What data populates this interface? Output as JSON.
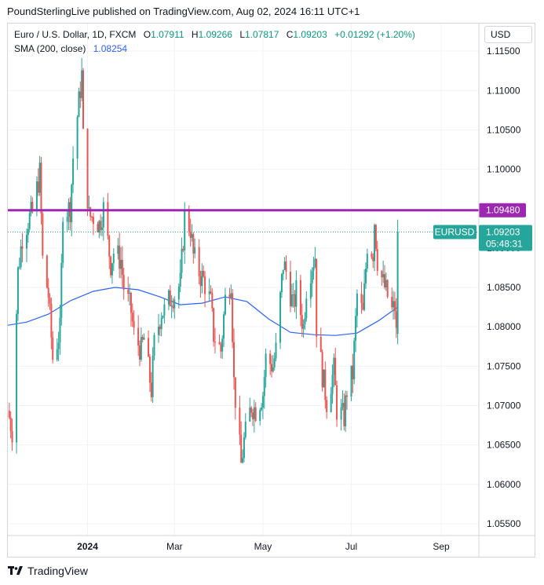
{
  "headline": "PoundSterlingLive published on TradingView.com, Aug 02, 2024 16:11 UTC+1",
  "legend": {
    "symbol": "Euro / U.S. Dollar, 1D, FXCM",
    "open_key": "O",
    "open": "1.07911",
    "high_key": "H",
    "high": "1.09266",
    "low_key": "L",
    "low": "1.07817",
    "close_key": "C",
    "close": "1.09203",
    "change": "+0.01292 (+1.20%)",
    "sma_label": "SMA (200, close)",
    "sma_value": "1.08254"
  },
  "currency_button": "USD",
  "footer": {
    "brand": "TradingView"
  },
  "colors": {
    "up": "#26a69a",
    "down": "#ef5350",
    "sma": "#2962ff",
    "resistance": "#9c27b0",
    "price_tag": "#26a69a",
    "grid": "#f0f3fa",
    "border": "#d1d4dc"
  },
  "chart_data": {
    "type": "candlestick",
    "symbol_tag": "EURUSD",
    "last_price": "1.09203",
    "countdown": "05:48:31",
    "resistance_level": 1.0948,
    "resistance_label": "1.09480",
    "ylim": [
      1.0535,
      1.1185
    ],
    "y_ticks": [
      {
        "value": 1.115,
        "label": "1.11500"
      },
      {
        "value": 1.11,
        "label": "1.11000"
      },
      {
        "value": 1.105,
        "label": "1.10500"
      },
      {
        "value": 1.1,
        "label": "1.10000"
      },
      {
        "value": 1.09,
        "label": "1.09000"
      },
      {
        "value": 1.085,
        "label": "1.08500"
      },
      {
        "value": 1.08,
        "label": "1.08000"
      },
      {
        "value": 1.075,
        "label": "1.07500"
      },
      {
        "value": 1.07,
        "label": "1.07000"
      },
      {
        "value": 1.065,
        "label": "1.06500"
      },
      {
        "value": 1.06,
        "label": "1.06000"
      },
      {
        "value": 1.055,
        "label": "1.05500"
      }
    ],
    "x_range": [
      "2023-11-07",
      "2024-09-27"
    ],
    "x_ticks": [
      {
        "date": "2024-01-01",
        "label": "2024"
      },
      {
        "date": "2024-03-01",
        "label": "Mar"
      },
      {
        "date": "2024-05-01",
        "label": "May"
      },
      {
        "date": "2024-07-01",
        "label": "Jul"
      },
      {
        "date": "2024-09-01",
        "label": "Sep"
      }
    ],
    "price_path": [
      [
        "2023-11-08",
        1.0685
      ],
      [
        "2023-11-10",
        1.0668
      ],
      [
        "2023-11-14",
        1.087
      ],
      [
        "2023-11-17",
        1.0915
      ],
      [
        "2023-11-21",
        1.0935
      ],
      [
        "2023-11-24",
        1.0945
      ],
      [
        "2023-11-29",
        1.0995
      ],
      [
        "2023-12-01",
        1.0885
      ],
      [
        "2023-12-05",
        1.084
      ],
      [
        "2023-12-08",
        1.076
      ],
      [
        "2023-12-13",
        1.0795
      ],
      [
        "2023-12-15",
        1.095
      ],
      [
        "2023-12-20",
        1.095
      ],
      [
        "2023-12-22",
        1.1015
      ],
      [
        "2023-12-28",
        1.112
      ],
      [
        "2023-12-29",
        1.104
      ],
      [
        "2024-01-02",
        1.094
      ],
      [
        "2024-01-05",
        1.094
      ],
      [
        "2024-01-09",
        1.093
      ],
      [
        "2024-01-12",
        1.095
      ],
      [
        "2024-01-17",
        1.088
      ],
      [
        "2024-01-19",
        1.0895
      ],
      [
        "2024-01-24",
        1.0885
      ],
      [
        "2024-01-26",
        1.085
      ],
      [
        "2024-01-31",
        1.082
      ],
      [
        "2024-02-02",
        1.079
      ],
      [
        "2024-02-07",
        1.077
      ],
      [
        "2024-02-09",
        1.0785
      ],
      [
        "2024-02-14",
        1.072
      ],
      [
        "2024-02-16",
        1.0778
      ],
      [
        "2024-02-21",
        1.082
      ],
      [
        "2024-02-23",
        1.082
      ],
      [
        "2024-02-28",
        1.084
      ],
      [
        "2024-03-01",
        1.084
      ],
      [
        "2024-03-05",
        1.0855
      ],
      [
        "2024-03-08",
        1.094
      ],
      [
        "2024-03-12",
        1.0925
      ],
      [
        "2024-03-14",
        1.089
      ],
      [
        "2024-03-19",
        1.0865
      ],
      [
        "2024-03-21",
        1.086
      ],
      [
        "2024-03-26",
        1.083
      ],
      [
        "2024-03-28",
        1.079
      ],
      [
        "2024-04-02",
        1.077
      ],
      [
        "2024-04-05",
        1.0835
      ],
      [
        "2024-04-09",
        1.086
      ],
      [
        "2024-04-11",
        1.073
      ],
      [
        "2024-04-16",
        1.0625
      ],
      [
        "2024-04-18",
        1.0655
      ],
      [
        "2024-04-23",
        1.07
      ],
      [
        "2024-04-26",
        1.0695
      ],
      [
        "2024-05-01",
        1.0715
      ],
      [
        "2024-05-03",
        1.076
      ],
      [
        "2024-05-08",
        1.075
      ],
      [
        "2024-05-10",
        1.077
      ],
      [
        "2024-05-15",
        1.088
      ],
      [
        "2024-05-17",
        1.087
      ],
      [
        "2024-05-22",
        1.0825
      ],
      [
        "2024-05-24",
        1.0845
      ],
      [
        "2024-05-29",
        1.08
      ],
      [
        "2024-05-31",
        1.085
      ],
      [
        "2024-06-04",
        1.088
      ],
      [
        "2024-06-06",
        1.089
      ],
      [
        "2024-06-07",
        1.08
      ],
      [
        "2024-06-11",
        1.074
      ],
      [
        "2024-06-14",
        1.0705
      ],
      [
        "2024-06-19",
        1.0745
      ],
      [
        "2024-06-21",
        1.0695
      ],
      [
        "2024-06-26",
        1.0685
      ],
      [
        "2024-06-28",
        1.072
      ],
      [
        "2024-07-02",
        1.074
      ],
      [
        "2024-07-05",
        1.084
      ],
      [
        "2024-07-09",
        1.0815
      ],
      [
        "2024-07-12",
        1.0905
      ],
      [
        "2024-07-16",
        1.0895
      ],
      [
        "2024-07-17",
        1.0935
      ],
      [
        "2024-07-19",
        1.0885
      ],
      [
        "2024-07-23",
        1.0855
      ],
      [
        "2024-07-25",
        1.0845
      ],
      [
        "2024-07-29",
        1.082
      ],
      [
        "2024-07-31",
        1.0825
      ],
      [
        "2024-08-01",
        1.079
      ],
      [
        "2024-08-02",
        1.092
      ]
    ],
    "sma_path": [
      [
        "2023-11-07",
        1.0802
      ],
      [
        "2023-11-20",
        1.0806
      ],
      [
        "2023-12-05",
        1.0816
      ],
      [
        "2023-12-20",
        1.0833
      ],
      [
        "2024-01-05",
        1.0845
      ],
      [
        "2024-01-20",
        1.085
      ],
      [
        "2024-02-05",
        1.0847
      ],
      [
        "2024-02-20",
        1.0838
      ],
      [
        "2024-03-05",
        1.0828
      ],
      [
        "2024-03-20",
        1.083
      ],
      [
        "2024-04-05",
        1.0838
      ],
      [
        "2024-04-20",
        1.0832
      ],
      [
        "2024-05-05",
        1.081
      ],
      [
        "2024-05-20",
        1.0793
      ],
      [
        "2024-06-05",
        1.079
      ],
      [
        "2024-06-20",
        1.0789
      ],
      [
        "2024-07-05",
        1.0792
      ],
      [
        "2024-07-20",
        1.0808
      ],
      [
        "2024-08-02",
        1.0825
      ]
    ]
  }
}
